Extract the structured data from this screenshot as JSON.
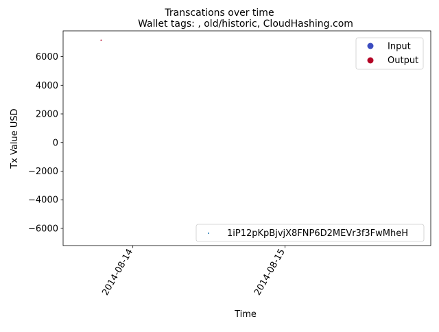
{
  "chart_data": {
    "type": "scatter",
    "title": "Transcations over time",
    "subtitle": "Wallet tags: , old/historic, CloudHashing.com",
    "xlabel": "Time",
    "ylabel": "Tx Value USD",
    "xlim": [
      "2014-08-13T13:00",
      "2014-08-15T23:00"
    ],
    "ylim": [
      -7200,
      7800
    ],
    "x_ticks": [
      "2014-08-14",
      "2014-08-15"
    ],
    "y_ticks": [
      -6000,
      -4000,
      -2000,
      0,
      2000,
      4000,
      6000
    ],
    "grid": false,
    "legends": [
      {
        "placement": "upper right",
        "entries": [
          {
            "label": "Input",
            "color": "#3b4cc0"
          },
          {
            "label": "Output",
            "color": "#b40426"
          }
        ]
      },
      {
        "placement": "lower right",
        "entries": [
          {
            "label": "1iP12pKpBjvjX8FNP6D2MEVr3f3FwMheH",
            "color": "#1f77b4"
          }
        ]
      }
    ],
    "series": [
      {
        "name": "1iP12pKpBjvjX8FNP6D2MEVr3f3FwMheH",
        "points": [
          {
            "x": "2014-08-13T19:00",
            "y": 7150,
            "direction": "Output"
          }
        ]
      }
    ]
  }
}
